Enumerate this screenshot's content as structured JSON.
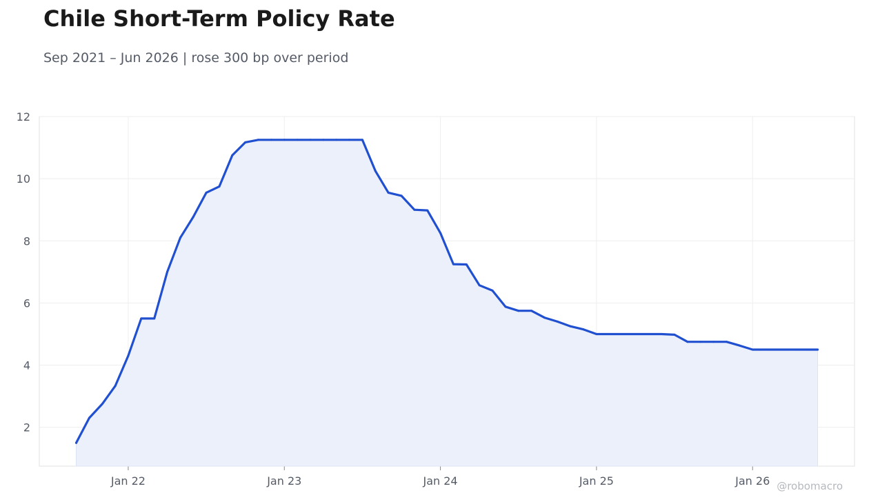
{
  "chart_data": {
    "type": "area",
    "title": "Chile Short-Term Policy Rate",
    "subtitle": "Sep 2021 – Jun 2026 | rose 300 bp over period",
    "xlabel": "",
    "ylabel": "",
    "ylim": [
      0.75,
      12
    ],
    "yticks": [
      2,
      4,
      6,
      8,
      10,
      12
    ],
    "xticks": [
      {
        "date": "2022-01",
        "label": "Jan 22"
      },
      {
        "date": "2023-01",
        "label": "Jan 23"
      },
      {
        "date": "2024-01",
        "label": "Jan 24"
      },
      {
        "date": "2025-01",
        "label": "Jan 25"
      },
      {
        "date": "2026-01",
        "label": "Jan 26"
      }
    ],
    "grid": true,
    "legend": "none",
    "line_color": "#2050d0",
    "fill_color": "#ecf0fb",
    "series": [
      {
        "x": [
          "2021-09",
          "2021-10",
          "2021-11",
          "2021-12",
          "2022-01",
          "2022-02",
          "2022-03",
          "2022-04",
          "2022-05",
          "2022-06",
          "2022-07",
          "2022-08",
          "2022-09",
          "2022-10",
          "2022-11",
          "2022-12",
          "2023-01",
          "2023-02",
          "2023-03",
          "2023-04",
          "2023-05",
          "2023-06",
          "2023-07",
          "2023-08",
          "2023-09",
          "2023-10",
          "2023-11",
          "2023-12",
          "2024-01",
          "2024-02",
          "2024-03",
          "2024-04",
          "2024-05",
          "2024-06",
          "2024-07",
          "2024-08",
          "2024-09",
          "2024-10",
          "2024-11",
          "2024-12",
          "2025-01",
          "2025-02",
          "2025-03",
          "2025-04",
          "2025-05",
          "2025-06",
          "2025-07",
          "2025-08",
          "2025-09",
          "2025-10",
          "2025-11",
          "2025-12",
          "2026-01",
          "2026-02",
          "2026-03",
          "2026-04",
          "2026-05",
          "2026-06"
        ],
        "values": [
          1.5,
          2.3,
          2.75,
          3.33,
          4.3,
          5.5,
          5.5,
          7.0,
          8.1,
          8.77,
          9.55,
          9.75,
          10.75,
          11.17,
          11.25,
          11.25,
          11.25,
          11.25,
          11.25,
          11.25,
          11.25,
          11.25,
          11.25,
          10.25,
          9.55,
          9.45,
          9.0,
          8.98,
          8.25,
          7.25,
          7.24,
          6.57,
          6.4,
          5.88,
          5.75,
          5.75,
          5.53,
          5.4,
          5.25,
          5.15,
          5.0,
          5.0,
          5.0,
          5.0,
          5.0,
          5.0,
          4.98,
          4.75,
          4.75,
          4.75,
          4.75,
          4.63,
          4.5,
          4.5,
          4.5,
          4.5,
          4.5,
          4.5
        ]
      }
    ]
  },
  "watermark": "@robomacro"
}
